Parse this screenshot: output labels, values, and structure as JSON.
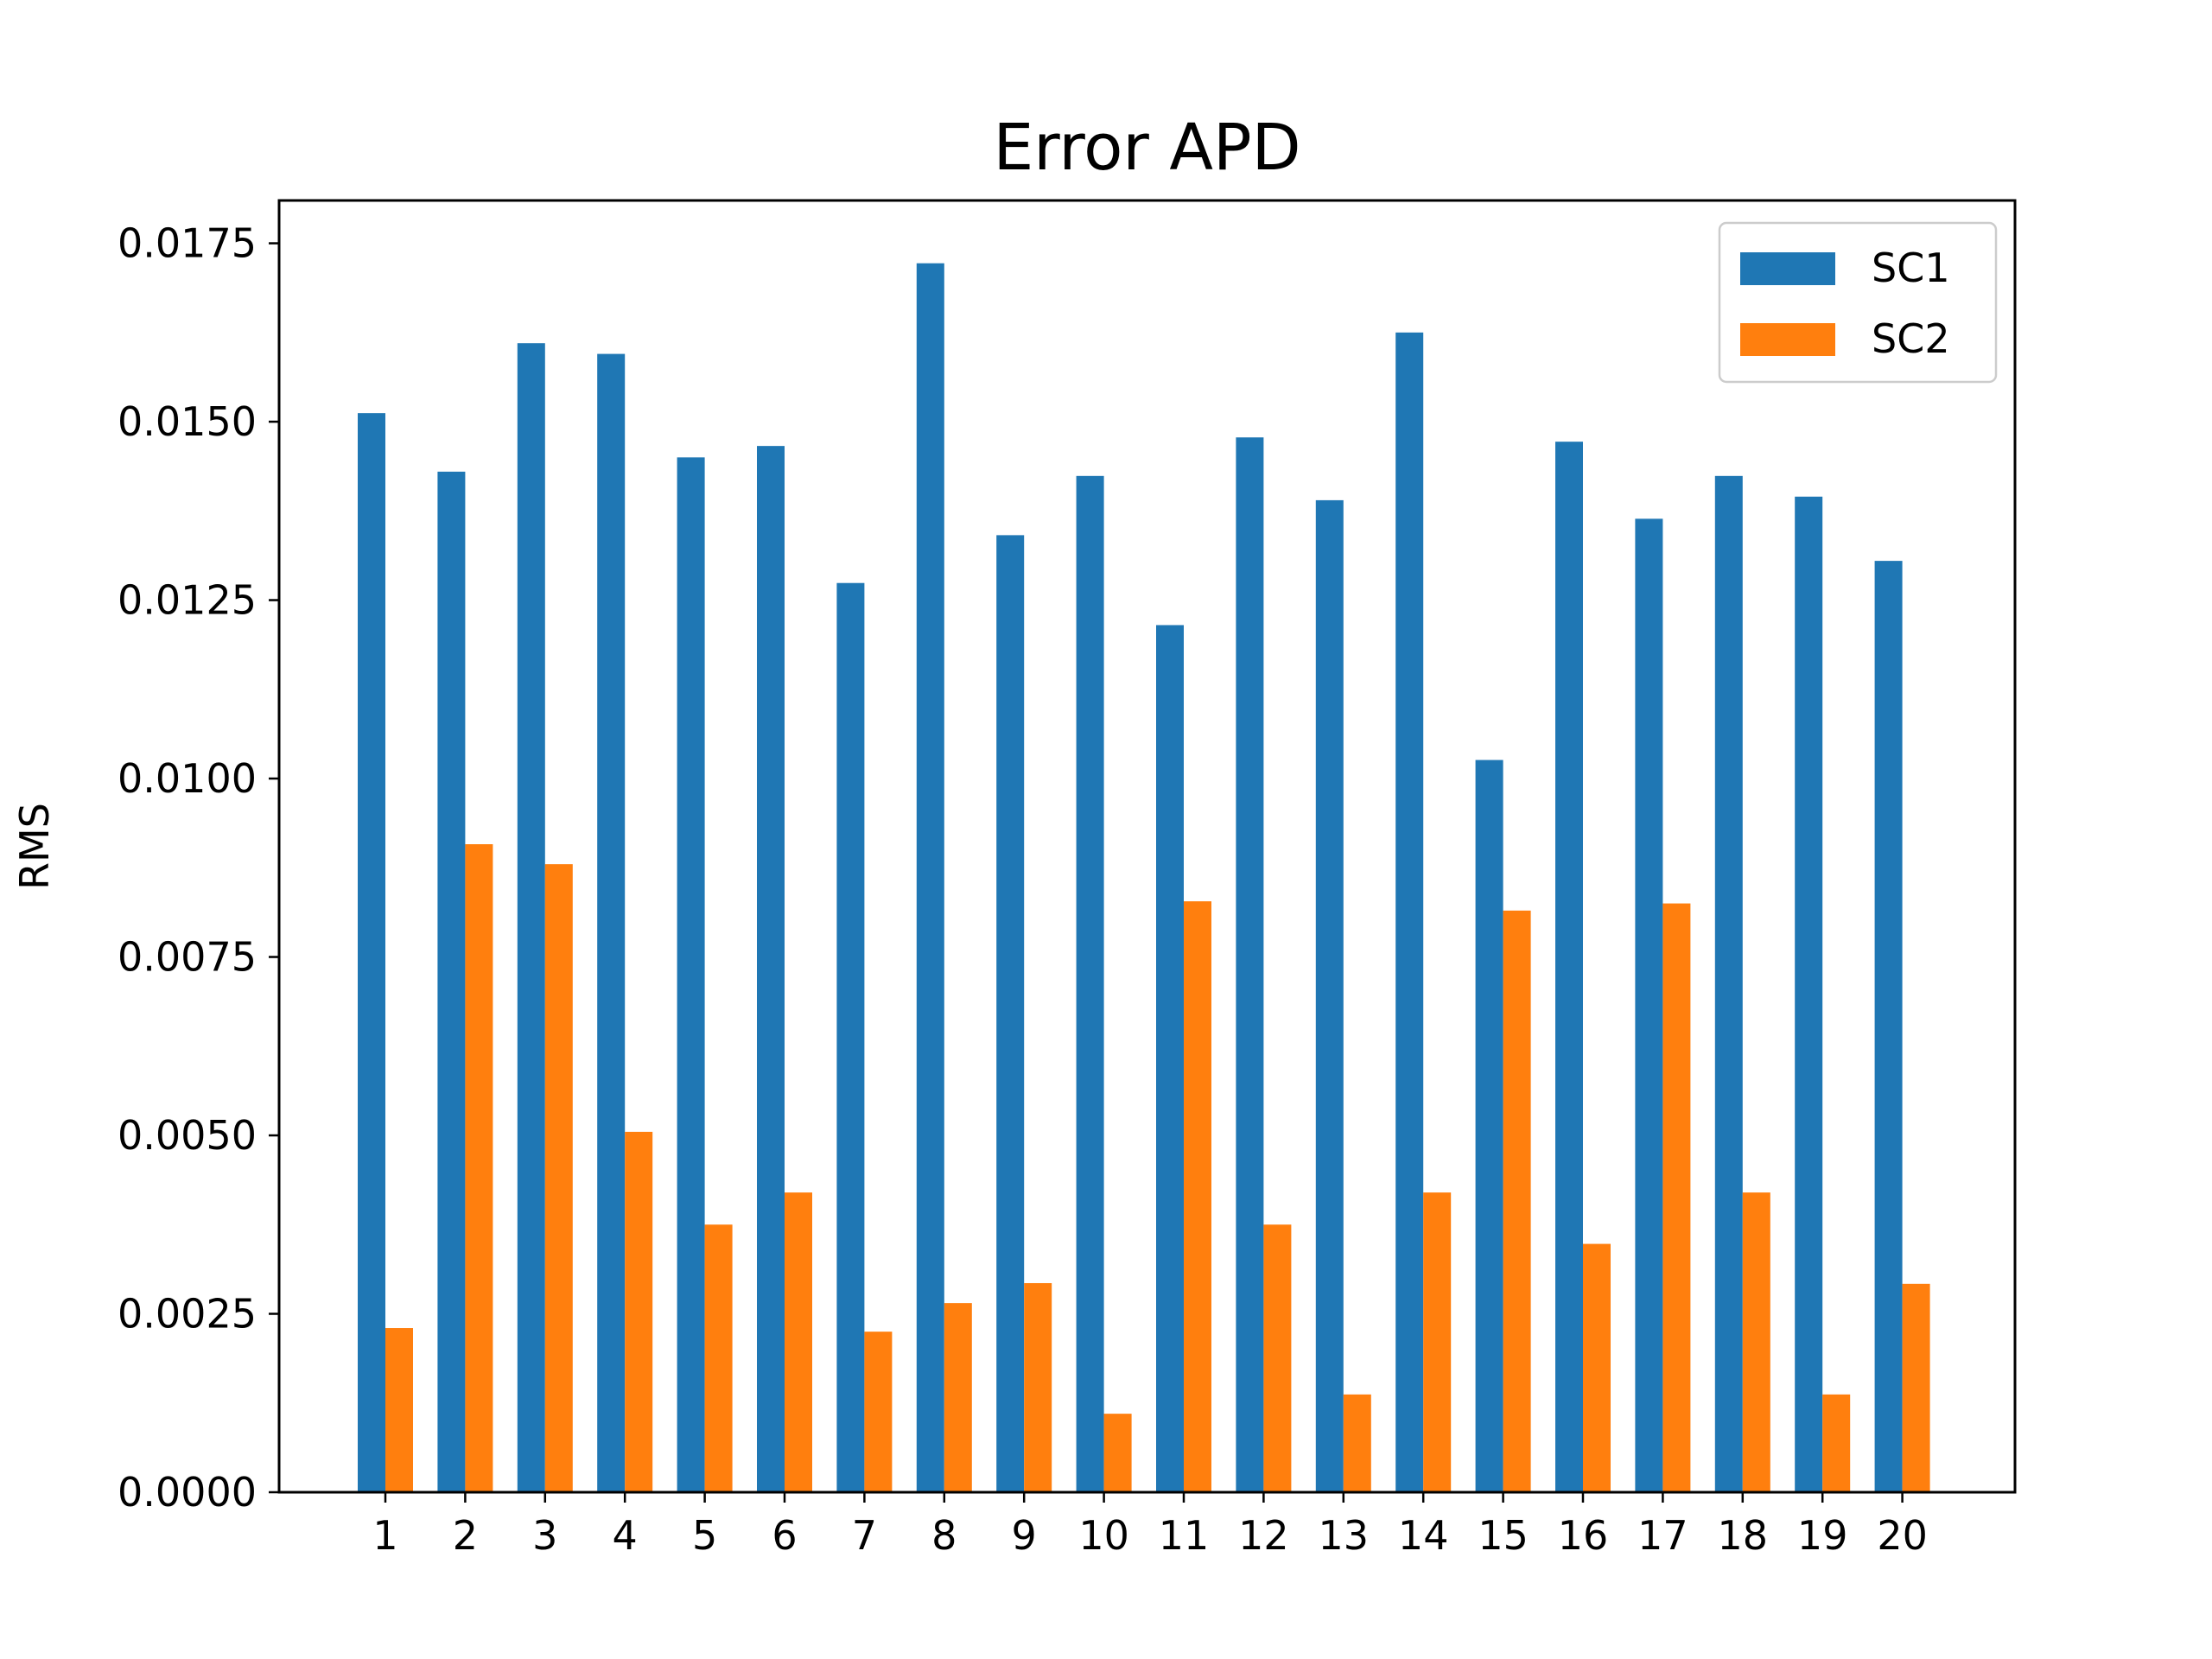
{
  "chart_data": {
    "type": "bar",
    "title": "Error APD",
    "xlabel": "",
    "ylabel": "RMS",
    "categories": [
      "1",
      "2",
      "3",
      "4",
      "5",
      "6",
      "7",
      "8",
      "9",
      "10",
      "11",
      "12",
      "13",
      "14",
      "15",
      "16",
      "17",
      "18",
      "19",
      "20"
    ],
    "ylim": [
      0,
      0.0181
    ],
    "yticks": [
      "0.0000",
      "0.0025",
      "0.0050",
      "0.0075",
      "0.0100",
      "0.0125",
      "0.0150",
      "0.0175"
    ],
    "ytick_values": [
      0,
      0.0025,
      0.005,
      0.0075,
      0.01,
      0.0125,
      0.015,
      0.0175
    ],
    "grid": false,
    "legend_position": "top-right",
    "series": [
      {
        "name": "SC1",
        "color": "#1f77b4",
        "values": [
          0.01512,
          0.0143,
          0.0161,
          0.01595,
          0.0145,
          0.01466,
          0.01274,
          0.01722,
          0.01341,
          0.01424,
          0.01215,
          0.01478,
          0.0139,
          0.01625,
          0.01026,
          0.01472,
          0.01364,
          0.01424,
          0.01395,
          0.01305
        ]
      },
      {
        "name": "SC2",
        "color": "#ff7f0e",
        "values": [
          0.0023,
          0.00908,
          0.0088,
          0.00505,
          0.00375,
          0.0042,
          0.00225,
          0.00265,
          0.00293,
          0.0011,
          0.00828,
          0.00375,
          0.00137,
          0.0042,
          0.00815,
          0.00348,
          0.00825,
          0.0042,
          0.00137,
          0.00292
        ]
      }
    ]
  }
}
